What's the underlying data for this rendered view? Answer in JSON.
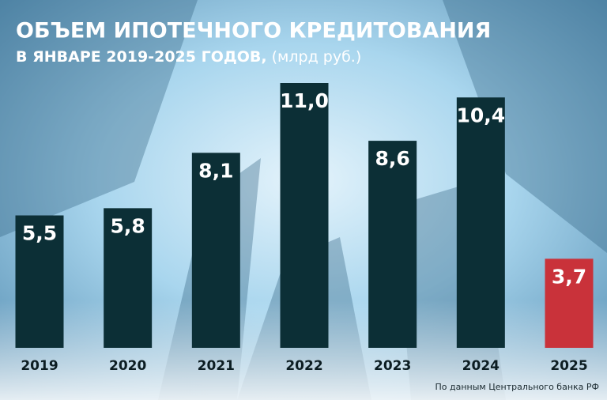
{
  "chart_data": {
    "type": "bar",
    "title": "ОБЪЕМ ИПОТЕЧНОГО КРЕДИТОВАНИЯ",
    "subtitle": "В ЯНВАРЕ 2019-2025 ГОДОВ,",
    "unit": "(млрд руб.)",
    "categories": [
      "2019",
      "2020",
      "2021",
      "2022",
      "2023",
      "2024",
      "2025"
    ],
    "values": [
      5.5,
      5.8,
      8.1,
      11.0,
      8.6,
      10.4,
      3.7
    ],
    "value_labels": [
      "5,5",
      "5,8",
      "8,1",
      "11,0",
      "8,6",
      "10,4",
      "3,7"
    ],
    "colors": [
      "#0c2f36",
      "#0c2f36",
      "#0c2f36",
      "#0c2f36",
      "#0c2f36",
      "#0c2f36",
      "#c9323a"
    ],
    "source": "По данным Центрального банка РФ"
  }
}
